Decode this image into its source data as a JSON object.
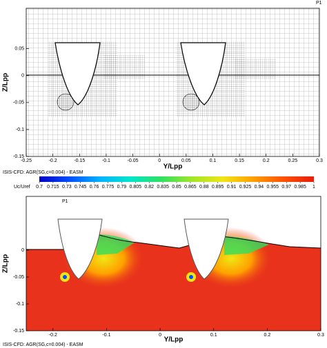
{
  "chart_data": [
    {
      "type": "mesh",
      "label": "P1",
      "xlabel": "Y/Lpp",
      "ylabel": "Z/Lpp",
      "caption": "ISIS-CFD: AGR(SG,c=0.004) - EASM",
      "xlim": [
        -0.25,
        0.3
      ],
      "ylim": [
        -0.15,
        0.125
      ],
      "xticks": [
        -0.25,
        -0.2,
        -0.15,
        -0.1,
        -0.05,
        0,
        0.05,
        0.1,
        0.15,
        0.2,
        0.25,
        0.3
      ],
      "yticks": [
        0.05,
        0,
        -0.05,
        -0.1,
        -0.15
      ]
    },
    {
      "type": "contour",
      "label": "P1",
      "xlabel": "Y/Lpp",
      "ylabel": "Z/Lpp",
      "caption": "ISIS-CFD: AGR(SG,c=0.004) - EASM",
      "xlim": [
        -0.25,
        0.3
      ],
      "ylim": [
        -0.15,
        0.1
      ],
      "xticks": [
        -0.2,
        -0.1,
        0,
        0.1,
        0.2,
        0.3
      ],
      "yticks": [
        0,
        -0.05,
        -0.1,
        -0.15
      ],
      "colorbar": {
        "label": "Uc/Uref",
        "lim": [
          0.7,
          1
        ],
        "ticks": [
          0.7,
          0.715,
          0.73,
          0.745,
          0.76,
          0.775,
          0.79,
          0.805,
          0.82,
          0.835,
          0.85,
          0.865,
          0.88,
          0.895,
          0.91,
          0.925,
          0.94,
          0.955,
          0.97,
          0.985,
          1
        ],
        "colors": [
          "#0000c8",
          "#0050ff",
          "#00b4ff",
          "#00e6c8",
          "#30e060",
          "#a0e628",
          "#f0e614",
          "#ffa000",
          "#ff5000",
          "#e61e0a"
        ]
      }
    }
  ]
}
